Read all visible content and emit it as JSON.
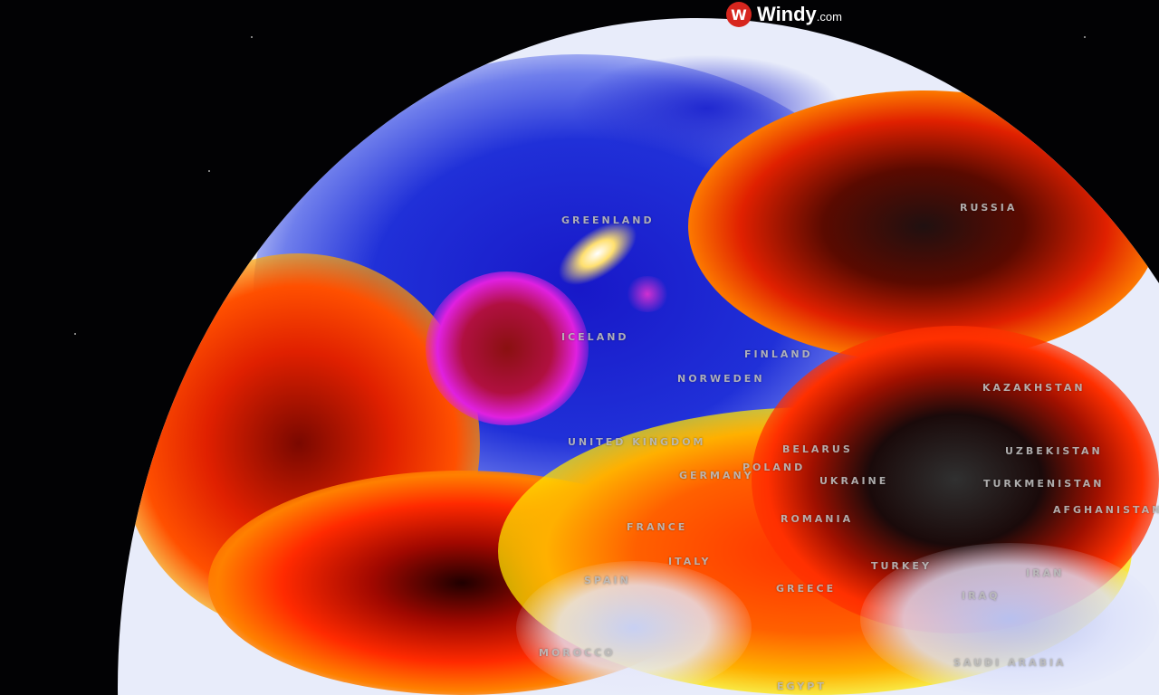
{
  "brand": {
    "name": "Windy",
    "suffix": ".com",
    "icon": "windy-logo-icon",
    "color": "#d7261e"
  },
  "map": {
    "layer_colors": {
      "cold": "#1a1ad0",
      "extreme_low": "#e020e0",
      "warm": "#ff3a00",
      "hot": "#2a1010",
      "mild": "#ffe000"
    },
    "labels": [
      "GREENLAND",
      "RUSSIA",
      "ICELAND",
      "FINLAND",
      "NORWEDEN",
      "UNITED KINGDOM",
      "BELARUS",
      "POLAND",
      "GERMANY",
      "UKRAINE",
      "KAZAKHSTAN",
      "UZBEKISTAN",
      "TURKMENISTAN",
      "AFGHANISTAN",
      "ROMANIA",
      "FRANCE",
      "ITALY",
      "SPAIN",
      "GREECE",
      "TURKEY",
      "IRAN",
      "IRAQ",
      "MOROCCO",
      "SAUDI ARABIA",
      "EGYPT"
    ]
  }
}
